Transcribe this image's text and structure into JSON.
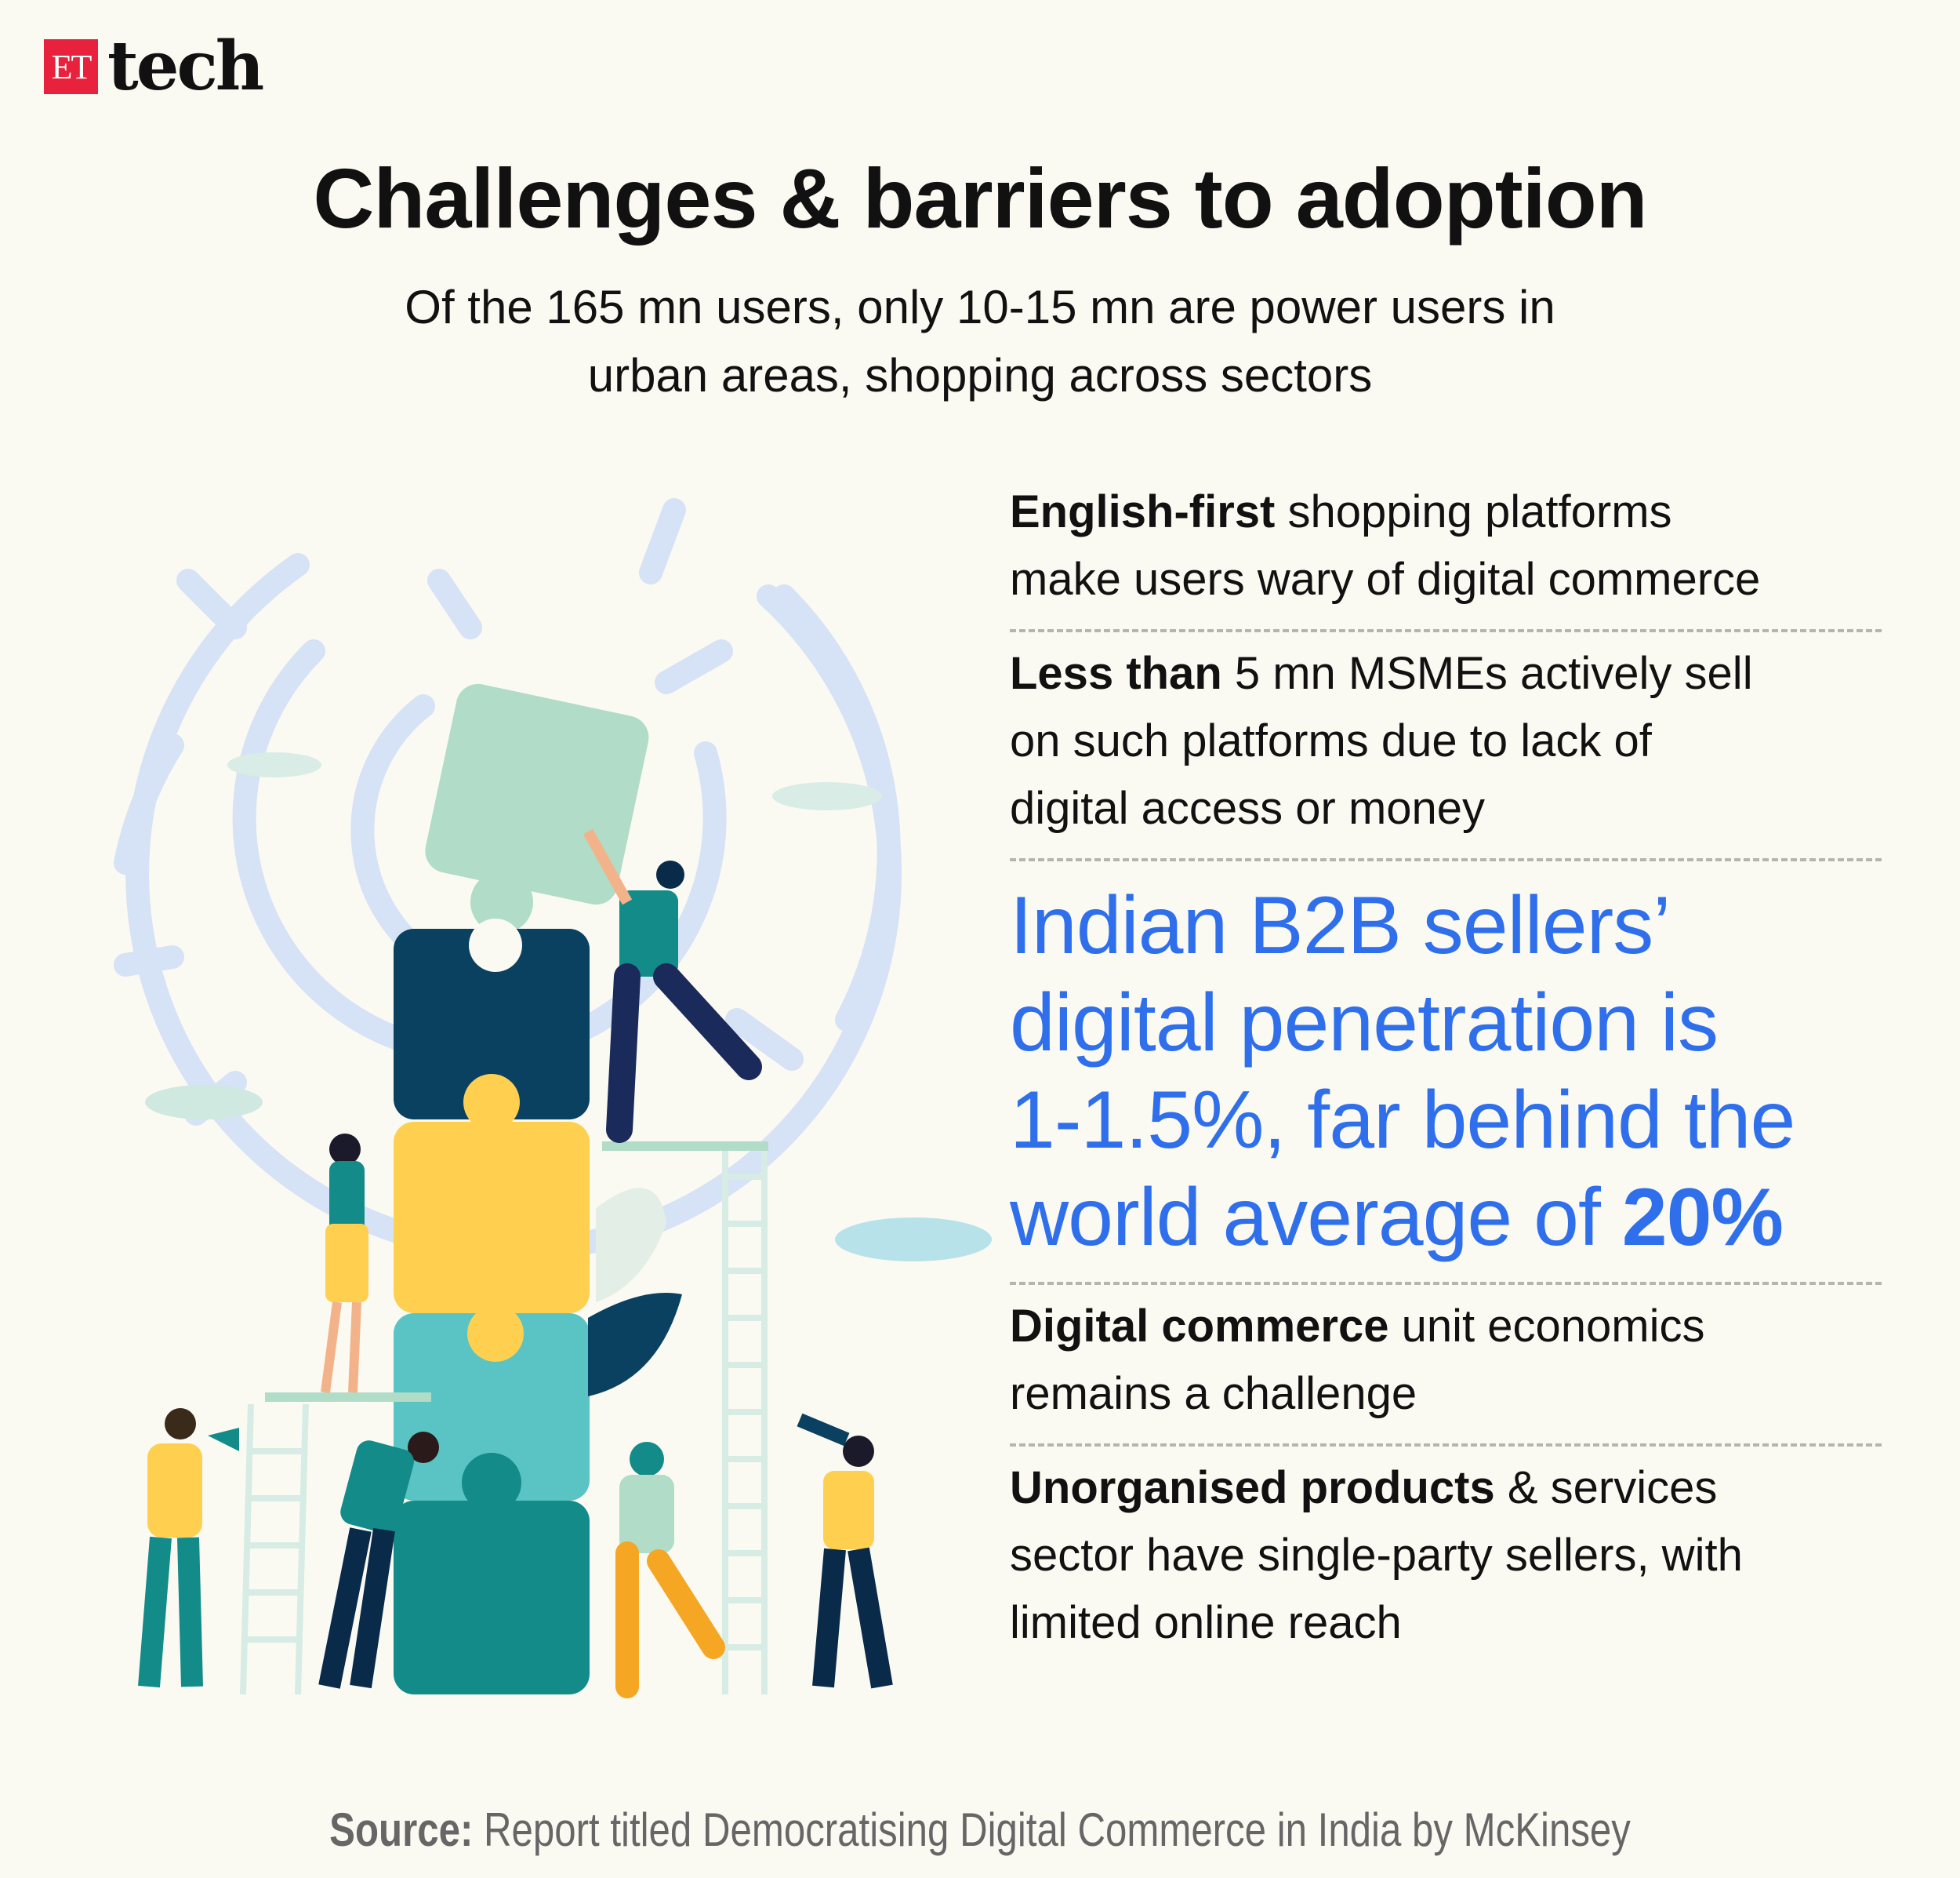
{
  "logo": {
    "box_text": "ET",
    "word": "tech",
    "box_color": "#e8223c"
  },
  "title": "Challenges & barriers to adoption",
  "subtitle": [
    "Of the 165 mn users, only 10-15 mn are power users in",
    "urban areas, shopping across sectors"
  ],
  "items": [
    {
      "lines": [
        {
          "bold": "English-first",
          "text": " shopping platforms"
        },
        {
          "bold": "",
          "text": "make users wary of digital commerce"
        }
      ]
    },
    {
      "lines": [
        {
          "bold": "Less than",
          "text": " 5 mn MSMEs actively sell"
        },
        {
          "bold": "",
          "text": "on such platforms due to lack of"
        },
        {
          "bold": "",
          "text": "digital access or money"
        }
      ]
    },
    {
      "lines": [
        {
          "bold": "Digital commerce",
          "text": " unit economics"
        },
        {
          "bold": "",
          "text": "remains a challenge"
        }
      ]
    },
    {
      "lines": [
        {
          "bold": "Unorganised products",
          "text": " & services"
        },
        {
          "bold": "",
          "text": "sector have single-party sellers, with"
        },
        {
          "bold": "",
          "text": "limited online reach"
        }
      ]
    }
  ],
  "highlight": {
    "lines": [
      "Indian B2B sellers’",
      "digital penetration is",
      "1-1.5%, far behind the",
      "world average of "
    ],
    "bold": "20%",
    "color": "#2f6fec"
  },
  "source": {
    "label": "Source:",
    "text": " Report titled Democratising Digital Commerce in India by McKinsey"
  },
  "illustration": {
    "icon": "puzzle-team-maze-illustration",
    "colors": {
      "maze": "#d6e2f5",
      "navy": "#0a4060",
      "yellow": "#ffd050",
      "teal": "#5ac4c4",
      "dark_teal": "#138b88",
      "mint": "#b0dcc8"
    }
  }
}
